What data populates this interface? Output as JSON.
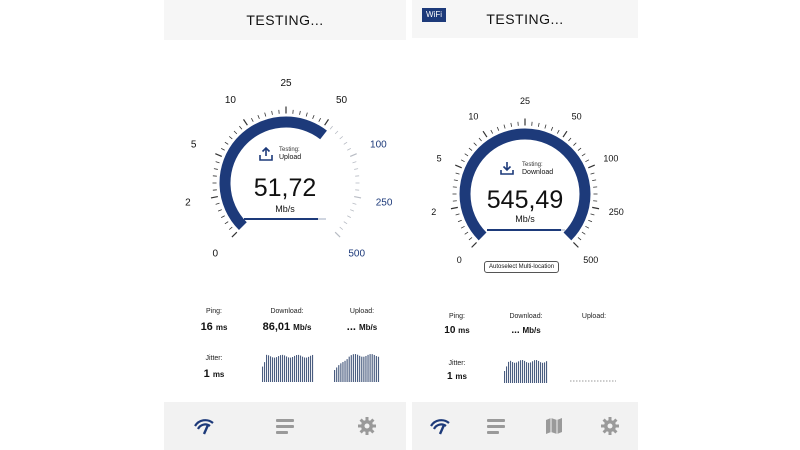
{
  "left": {
    "title": "TESTING...",
    "gauge": {
      "ticks": [
        "0",
        "2",
        "5",
        "10",
        "25",
        "50",
        "100",
        "250",
        "500"
      ],
      "testing_label": "Testing:",
      "mode": "Upload",
      "speed": "51,72",
      "unit": "Mb/s",
      "progress": 0.9
    },
    "stats": {
      "ping_label": "Ping:",
      "ping_value": "16",
      "ping_unit": "ms",
      "download_label": "Download:",
      "download_value": "86,01",
      "download_unit": "Mb/s",
      "upload_label": "Upload:",
      "upload_value": "...",
      "upload_unit": "Mb/s",
      "jitter_label": "Jitter:",
      "jitter_value": "1",
      "jitter_unit": "ms"
    },
    "nav": [
      "speedtest-icon",
      "list-icon",
      "gear-icon"
    ]
  },
  "right": {
    "badge": "WiFi",
    "title": "TESTING...",
    "gauge": {
      "ticks": [
        "0",
        "2",
        "5",
        "10",
        "25",
        "50",
        "100",
        "250",
        "500"
      ],
      "testing_label": "Testing:",
      "mode": "Download",
      "speed": "545,49",
      "unit": "Mb/s",
      "progress": 0.95
    },
    "autoselect": "Autoselect Multi-location",
    "stats": {
      "ping_label": "Ping:",
      "ping_value": "10",
      "ping_unit": "ms",
      "download_label": "Download:",
      "download_value": "...",
      "download_unit": "Mb/s",
      "upload_label": "Upload:",
      "jitter_label": "Jitter:",
      "jitter_value": "1",
      "jitter_unit": "ms"
    },
    "nav": [
      "speedtest-icon",
      "list-icon",
      "map-icon",
      "gear-icon"
    ]
  },
  "colors": {
    "accent": "#1d3a7a",
    "tick_inactive": "#b8bcc4",
    "background": "#ffffff",
    "bar": "#f2f2f2"
  }
}
